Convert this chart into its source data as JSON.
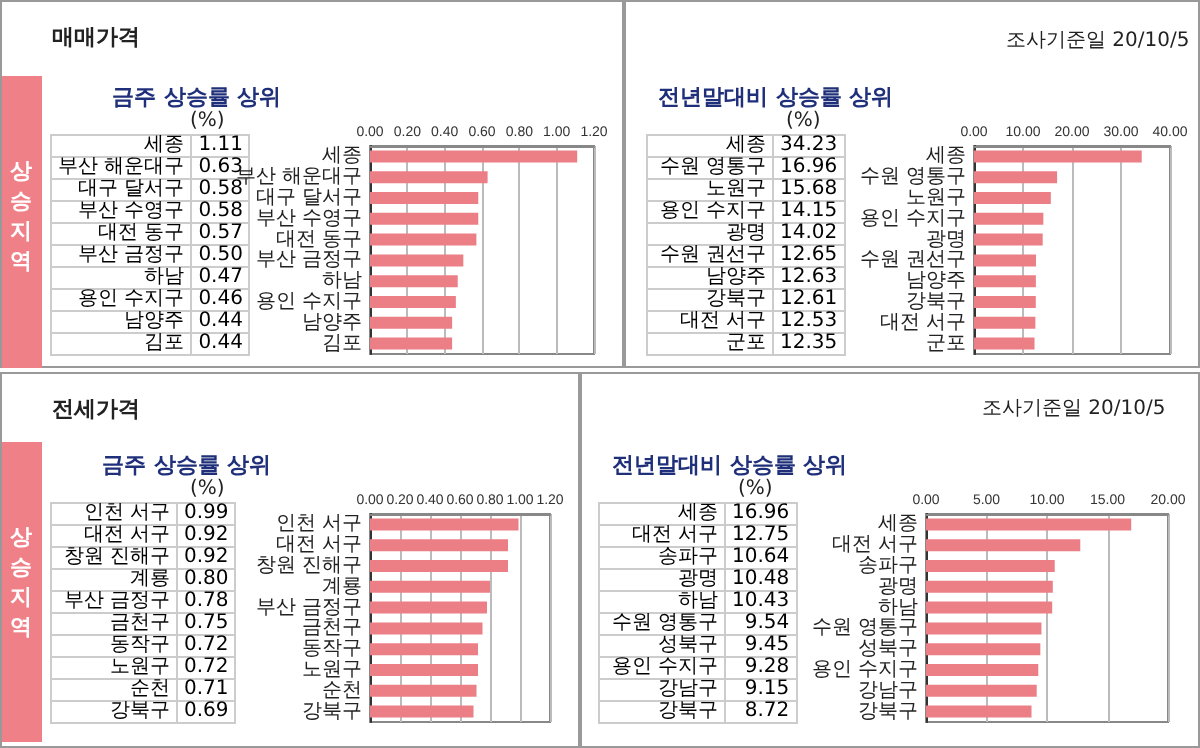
{
  "chart_data": [
    {
      "type": "bar",
      "orientation": "horizontal",
      "title": "금주 상승률 상위",
      "annotations": [
        "매매가격",
        "상승지역",
        "(%)"
      ],
      "categories": [
        "세종",
        "부산 해운대구",
        "대구 달서구",
        "부산 수영구",
        "대전 동구",
        "부산 금정구",
        "하남",
        "용인 수지구",
        "남양주",
        "김포"
      ],
      "values": [
        1.11,
        0.63,
        0.58,
        0.58,
        0.57,
        0.5,
        0.47,
        0.46,
        0.44,
        0.44
      ],
      "value_labels": [
        "1.11",
        "0.63",
        "0.58",
        "0.58",
        "0.57",
        "0.50",
        "0.47",
        "0.46",
        "0.44",
        "0.44"
      ],
      "color": "#ec7f86",
      "xlim": [
        0,
        1.2
      ],
      "xticks": [
        {
          "value": 0,
          "label": "0.00"
        },
        {
          "value": 0.2,
          "label": "0.20"
        },
        {
          "value": 0.4,
          "label": "0.40"
        },
        {
          "value": 0.6,
          "label": "0.60"
        },
        {
          "value": 0.8,
          "label": "0.80"
        },
        {
          "value": 1,
          "label": "1.00"
        },
        {
          "value": 1.2,
          "label": "1.20"
        }
      ],
      "grid": "x"
    },
    {
      "type": "bar",
      "orientation": "horizontal",
      "title": "전년말대비 상승률 상위",
      "annotations": [
        "조사기준일    20/10/5",
        "(%)"
      ],
      "categories": [
        "세종",
        "수원 영통구",
        "노원구",
        "용인 수지구",
        "광명",
        "수원 권선구",
        "남양주",
        "강북구",
        "대전 서구",
        "군포"
      ],
      "values": [
        34.23,
        16.96,
        15.68,
        14.15,
        14.02,
        12.65,
        12.63,
        12.61,
        12.53,
        12.35
      ],
      "value_labels": [
        "34.23",
        "16.96",
        "15.68",
        "14.15",
        "14.02",
        "12.65",
        "12.63",
        "12.61",
        "12.53",
        "12.35"
      ],
      "color": "#ec7f86",
      "xlim": [
        0,
        40
      ],
      "xticks": [
        {
          "value": 0,
          "label": "0.00"
        },
        {
          "value": 10,
          "label": "10.00"
        },
        {
          "value": 20,
          "label": "20.00"
        },
        {
          "value": 30,
          "label": "30.00"
        },
        {
          "value": 40,
          "label": "40.00"
        }
      ],
      "grid": "x"
    },
    {
      "type": "bar",
      "orientation": "horizontal",
      "title": "금주 상승률 상위",
      "annotations": [
        "전세가격",
        "상승지역",
        "(%)"
      ],
      "categories": [
        "인천 서구",
        "대전 서구",
        "창원 진해구",
        "계룡",
        "부산 금정구",
        "금천구",
        "동작구",
        "노원구",
        "순천",
        "강북구"
      ],
      "values": [
        0.99,
        0.92,
        0.92,
        0.8,
        0.78,
        0.75,
        0.72,
        0.72,
        0.71,
        0.69
      ],
      "value_labels": [
        "0.99",
        "0.92",
        "0.92",
        "0.80",
        "0.78",
        "0.75",
        "0.72",
        "0.72",
        "0.71",
        "0.69"
      ],
      "color": "#ec7f86",
      "xlim": [
        0,
        1.2
      ],
      "xticks": [
        {
          "value": 0,
          "label": "0.00"
        },
        {
          "value": 0.2,
          "label": "0.20"
        },
        {
          "value": 0.4,
          "label": "0.40"
        },
        {
          "value": 0.6,
          "label": "0.60"
        },
        {
          "value": 0.8,
          "label": "0.80"
        },
        {
          "value": 1,
          "label": "1.00"
        },
        {
          "value": 1.2,
          "label": "1.20"
        }
      ],
      "grid": "x"
    },
    {
      "type": "bar",
      "orientation": "horizontal",
      "title": "전년말대비 상승률 상위",
      "annotations": [
        "조사기준일    20/10/5",
        "(%)"
      ],
      "categories": [
        "세종",
        "대전 서구",
        "송파구",
        "광명",
        "하남",
        "수원 영통구",
        "성북구",
        "용인 수지구",
        "강남구",
        "강북구"
      ],
      "values": [
        16.96,
        12.75,
        10.64,
        10.48,
        10.43,
        9.54,
        9.45,
        9.28,
        9.15,
        8.72
      ],
      "value_labels": [
        "16.96",
        "12.75",
        "10.64",
        "10.48",
        "10.43",
        "9.54",
        "9.45",
        "9.28",
        "9.15",
        "8.72"
      ],
      "color": "#ec7f86",
      "xlim": [
        0,
        20
      ],
      "xticks": [
        {
          "value": 0,
          "label": "0.00"
        },
        {
          "value": 5,
          "label": "5.00"
        },
        {
          "value": 10,
          "label": "10.00"
        },
        {
          "value": 15,
          "label": "15.00"
        },
        {
          "value": 20,
          "label": "20.00"
        }
      ],
      "grid": "x"
    }
  ]
}
